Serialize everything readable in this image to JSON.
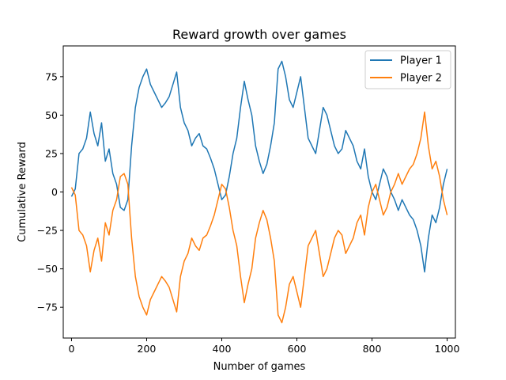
{
  "chart_data": {
    "type": "line",
    "title": "Reward growth over games",
    "xlabel": "Number of games",
    "ylabel": "Cumulative Reward",
    "xlim": [
      -22,
      1022
    ],
    "ylim": [
      -95,
      95
    ],
    "xticks": [
      0,
      200,
      400,
      600,
      800,
      1000
    ],
    "yticks": [
      -75,
      -50,
      -25,
      0,
      25,
      50,
      75
    ],
    "ytick_labels": [
      "−75",
      "−50",
      "−25",
      "0",
      "25",
      "50",
      "75"
    ],
    "grid": false,
    "legend_position": "top-right",
    "series": [
      {
        "name": "Player 1",
        "color": "#1f77b4",
        "x": [
          0,
          10,
          20,
          30,
          40,
          50,
          60,
          70,
          80,
          90,
          100,
          110,
          120,
          130,
          140,
          150,
          160,
          170,
          180,
          190,
          200,
          210,
          220,
          230,
          240,
          250,
          260,
          270,
          280,
          290,
          300,
          310,
          320,
          330,
          340,
          350,
          360,
          370,
          380,
          390,
          400,
          410,
          420,
          430,
          440,
          450,
          460,
          470,
          480,
          490,
          500,
          510,
          520,
          530,
          540,
          550,
          560,
          570,
          580,
          590,
          600,
          610,
          620,
          630,
          640,
          650,
          660,
          670,
          680,
          690,
          700,
          710,
          720,
          730,
          740,
          750,
          760,
          770,
          780,
          790,
          800,
          810,
          820,
          830,
          840,
          850,
          860,
          870,
          880,
          890,
          900,
          910,
          920,
          930,
          940,
          950,
          960,
          970,
          980,
          990,
          1000
        ],
        "values": [
          -3,
          2,
          25,
          28,
          35,
          52,
          38,
          30,
          45,
          20,
          28,
          12,
          5,
          -10,
          -12,
          -5,
          30,
          55,
          68,
          75,
          80,
          70,
          65,
          60,
          55,
          58,
          62,
          70,
          78,
          55,
          45,
          40,
          30,
          35,
          38,
          30,
          28,
          22,
          15,
          5,
          -5,
          -2,
          10,
          25,
          35,
          55,
          72,
          60,
          50,
          30,
          20,
          12,
          18,
          30,
          45,
          80,
          85,
          75,
          60,
          55,
          65,
          75,
          55,
          35,
          30,
          25,
          40,
          55,
          50,
          40,
          30,
          25,
          28,
          40,
          35,
          30,
          20,
          15,
          28,
          10,
          0,
          -5,
          5,
          15,
          10,
          0,
          -5,
          -12,
          -5,
          -10,
          -15,
          -18,
          -25,
          -35,
          -52,
          -30,
          -15,
          -20,
          -10,
          5,
          15
        ]
      },
      {
        "name": "Player 2",
        "color": "#ff7f0e",
        "x": [
          0,
          10,
          20,
          30,
          40,
          50,
          60,
          70,
          80,
          90,
          100,
          110,
          120,
          130,
          140,
          150,
          160,
          170,
          180,
          190,
          200,
          210,
          220,
          230,
          240,
          250,
          260,
          270,
          280,
          290,
          300,
          310,
          320,
          330,
          340,
          350,
          360,
          370,
          380,
          390,
          400,
          410,
          420,
          430,
          440,
          450,
          460,
          470,
          480,
          490,
          500,
          510,
          520,
          530,
          540,
          550,
          560,
          570,
          580,
          590,
          600,
          610,
          620,
          630,
          640,
          650,
          660,
          670,
          680,
          690,
          700,
          710,
          720,
          730,
          740,
          750,
          760,
          770,
          780,
          790,
          800,
          810,
          820,
          830,
          840,
          850,
          860,
          870,
          880,
          890,
          900,
          910,
          920,
          930,
          940,
          950,
          960,
          970,
          980,
          990,
          1000
        ],
        "values": [
          3,
          -2,
          -25,
          -28,
          -35,
          -52,
          -38,
          -30,
          -45,
          -20,
          -28,
          -12,
          -5,
          10,
          12,
          5,
          -30,
          -55,
          -68,
          -75,
          -80,
          -70,
          -65,
          -60,
          -55,
          -58,
          -62,
          -70,
          -78,
          -55,
          -45,
          -40,
          -30,
          -35,
          -38,
          -30,
          -28,
          -22,
          -15,
          -5,
          5,
          2,
          -10,
          -25,
          -35,
          -55,
          -72,
          -60,
          -50,
          -30,
          -20,
          -12,
          -18,
          -30,
          -45,
          -80,
          -85,
          -75,
          -60,
          -55,
          -65,
          -75,
          -55,
          -35,
          -30,
          -25,
          -40,
          -55,
          -50,
          -40,
          -30,
          -25,
          -28,
          -40,
          -35,
          -30,
          -20,
          -15,
          -28,
          -10,
          0,
          5,
          -5,
          -15,
          -10,
          0,
          5,
          12,
          5,
          10,
          15,
          18,
          25,
          35,
          52,
          30,
          15,
          20,
          10,
          -5,
          -15
        ]
      }
    ]
  }
}
